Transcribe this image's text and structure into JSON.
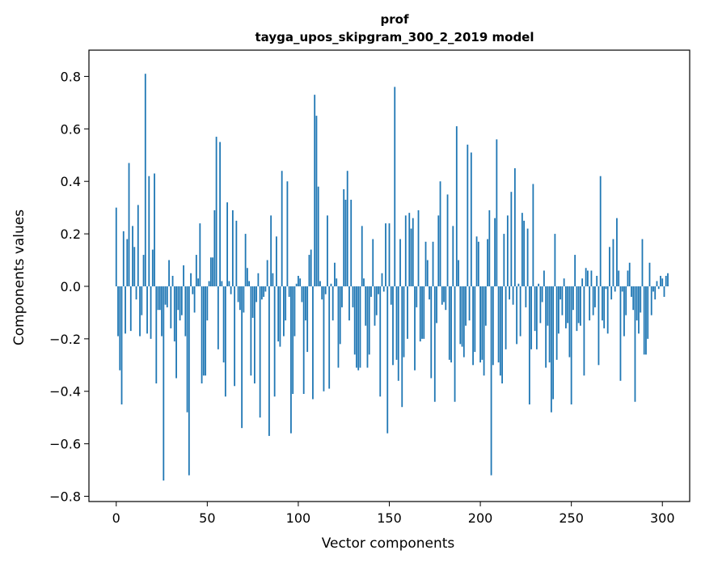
{
  "chart_data": {
    "type": "bar",
    "title_line1": "prof",
    "title_line2": "tayga_upos_skipgram_300_2_2019 model",
    "xlabel": "Vector components",
    "ylabel": "Components values",
    "xlim": [
      -15,
      315
    ],
    "ylim": [
      -0.82,
      0.9
    ],
    "xticks": [
      0,
      50,
      100,
      150,
      200,
      250,
      300
    ],
    "yticks": [
      -0.8,
      -0.6,
      -0.4,
      -0.2,
      0.0,
      0.2,
      0.4,
      0.6,
      0.8
    ],
    "xtick_labels": [
      "0",
      "50",
      "100",
      "150",
      "200",
      "250",
      "300"
    ],
    "ytick_labels": [
      "−0.8",
      "−0.6",
      "−0.4",
      "−0.2",
      "0.0",
      "0.2",
      "0.4",
      "0.6",
      "0.8"
    ],
    "bar_color": "#1f77b4",
    "grid": false,
    "values": [
      0.3,
      -0.19,
      -0.32,
      -0.45,
      0.21,
      -0.18,
      0.18,
      0.47,
      -0.17,
      0.23,
      0.15,
      -0.05,
      0.31,
      -0.19,
      -0.11,
      0.12,
      0.81,
      -0.18,
      0.42,
      -0.2,
      0.14,
      0.43,
      -0.37,
      -0.09,
      -0.09,
      -0.19,
      -0.74,
      -0.07,
      -0.08,
      0.1,
      -0.16,
      0.04,
      -0.21,
      -0.35,
      -0.09,
      -0.13,
      -0.11,
      0.08,
      -0.19,
      -0.48,
      -0.72,
      0.05,
      -0.03,
      -0.1,
      0.12,
      0.03,
      0.24,
      -0.37,
      -0.34,
      -0.34,
      -0.13,
      0.02,
      0.11,
      0.11,
      0.29,
      0.57,
      -0.24,
      0.55,
      0.02,
      -0.29,
      -0.42,
      0.32,
      0.02,
      -0.03,
      0.29,
      -0.38,
      0.25,
      -0.06,
      -0.09,
      -0.54,
      -0.1,
      0.2,
      0.07,
      0.02,
      -0.34,
      -0.12,
      -0.37,
      -0.06,
      0.05,
      -0.5,
      -0.05,
      -0.04,
      -0.02,
      0.1,
      -0.57,
      0.27,
      0.05,
      -0.42,
      0.19,
      -0.21,
      -0.23,
      0.44,
      -0.19,
      -0.13,
      0.4,
      -0.04,
      -0.56,
      -0.41,
      -0.19,
      0.01,
      0.04,
      0.03,
      -0.06,
      -0.41,
      -0.13,
      -0.25,
      0.12,
      0.14,
      -0.43,
      0.73,
      0.65,
      0.38,
      0.02,
      -0.05,
      -0.4,
      -0.03,
      0.27,
      -0.39,
      0.01,
      -0.13,
      0.09,
      0.03,
      -0.31,
      -0.22,
      -0.08,
      0.37,
      0.33,
      0.44,
      -0.13,
      0.33,
      -0.08,
      -0.26,
      -0.31,
      -0.32,
      -0.31,
      0.23,
      0.03,
      -0.15,
      -0.31,
      -0.26,
      -0.04,
      0.18,
      -0.15,
      -0.11,
      -0.03,
      -0.42,
      0.05,
      -0.02,
      0.24,
      -0.56,
      0.24,
      -0.07,
      -0.3,
      0.76,
      -0.28,
      -0.36,
      0.18,
      -0.46,
      -0.27,
      0.27,
      -0.2,
      0.28,
      0.22,
      0.26,
      -0.32,
      -0.08,
      0.29,
      -0.21,
      -0.2,
      -0.2,
      0.17,
      0.1,
      -0.05,
      -0.35,
      0.17,
      -0.44,
      -0.14,
      0.27,
      0.4,
      -0.07,
      -0.06,
      -0.09,
      0.35,
      -0.28,
      -0.29,
      0.23,
      -0.44,
      0.61,
      0.1,
      -0.22,
      -0.23,
      -0.27,
      -0.15,
      0.54,
      -0.13,
      0.51,
      -0.3,
      -0.25,
      0.19,
      0.17,
      -0.29,
      -0.28,
      -0.34,
      -0.15,
      0.18,
      0.29,
      -0.72,
      -0.3,
      0.26,
      0.56,
      -0.29,
      -0.34,
      -0.37,
      0.2,
      -0.24,
      0.27,
      -0.05,
      0.36,
      -0.07,
      0.45,
      -0.22,
      0.01,
      -0.19,
      0.28,
      0.25,
      -0.08,
      0.22,
      -0.45,
      -0.24,
      0.39,
      -0.17,
      -0.24,
      0.01,
      -0.14,
      -0.06,
      0.06,
      -0.31,
      -0.15,
      -0.29,
      -0.48,
      -0.43,
      0.2,
      -0.28,
      -0.18,
      -0.05,
      -0.11,
      0.03,
      -0.16,
      -0.14,
      -0.27,
      -0.45,
      -0.09,
      0.12,
      -0.17,
      -0.14,
      -0.15,
      0.03,
      -0.34,
      0.07,
      0.06,
      -0.13,
      0.06,
      -0.11,
      -0.08,
      0.04,
      -0.3,
      0.42,
      -0.13,
      -0.16,
      -0.01,
      -0.18,
      0.15,
      -0.05,
      0.18,
      -0.02,
      0.26,
      0.06,
      -0.36,
      -0.02,
      -0.19,
      -0.11,
      0.06,
      0.09,
      -0.04,
      -0.09,
      -0.44,
      -0.13,
      -0.18,
      -0.1,
      0.18,
      -0.26,
      -0.26,
      -0.2,
      0.09,
      -0.11,
      -0.02,
      -0.05,
      0.02,
      -0.01,
      0.04,
      0.03,
      -0.04,
      0.04,
      0.05
    ]
  }
}
